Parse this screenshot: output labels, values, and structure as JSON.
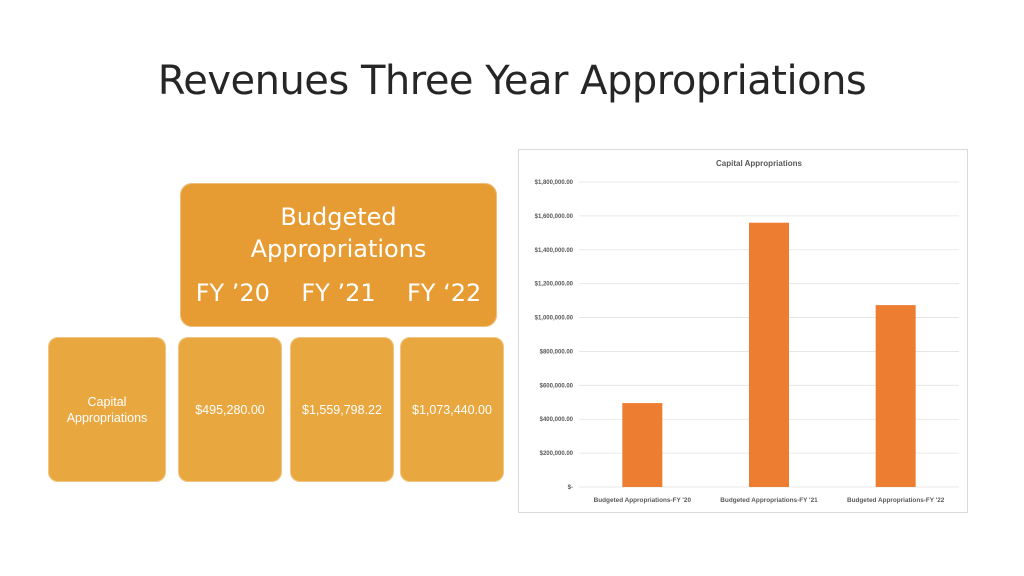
{
  "slide": {
    "title": "Revenues Three Year Appropriations"
  },
  "table": {
    "header_title_line1": "Budgeted",
    "header_title_line2": "Appropriations",
    "years": [
      "FY ’20",
      "FY ’21",
      "FY ‘22"
    ],
    "row_label_line1": "Capital",
    "row_label_line2": "Appropriations",
    "values": [
      "$495,280.00",
      "$1,559,798.22",
      "$1,073,440.00"
    ]
  },
  "colors": {
    "box": "#E8A43A",
    "bar": "#ED7D31"
  },
  "chart_data": {
    "type": "bar",
    "title": "Capital Appropriations",
    "categories": [
      "Budgeted Appropriations-FY '20",
      "Budgeted Appropriations-FY '21",
      "Budgeted Appropriations-FY '22"
    ],
    "values": [
      495280.0,
      1559798.22,
      1073440.0
    ],
    "ylim": [
      0,
      1800000
    ],
    "yticks": [
      0,
      200000,
      400000,
      600000,
      800000,
      1000000,
      1200000,
      1400000,
      1600000,
      1800000
    ],
    "ytick_labels": [
      "$-",
      "$200,000.00",
      "$400,000.00",
      "$600,000.00",
      "$800,000.00",
      "$1,000,000.00",
      "$1,200,000.00",
      "$1,400,000.00",
      "$1,600,000.00",
      "$1,800,000.00"
    ],
    "grid": true,
    "legend": "none"
  }
}
